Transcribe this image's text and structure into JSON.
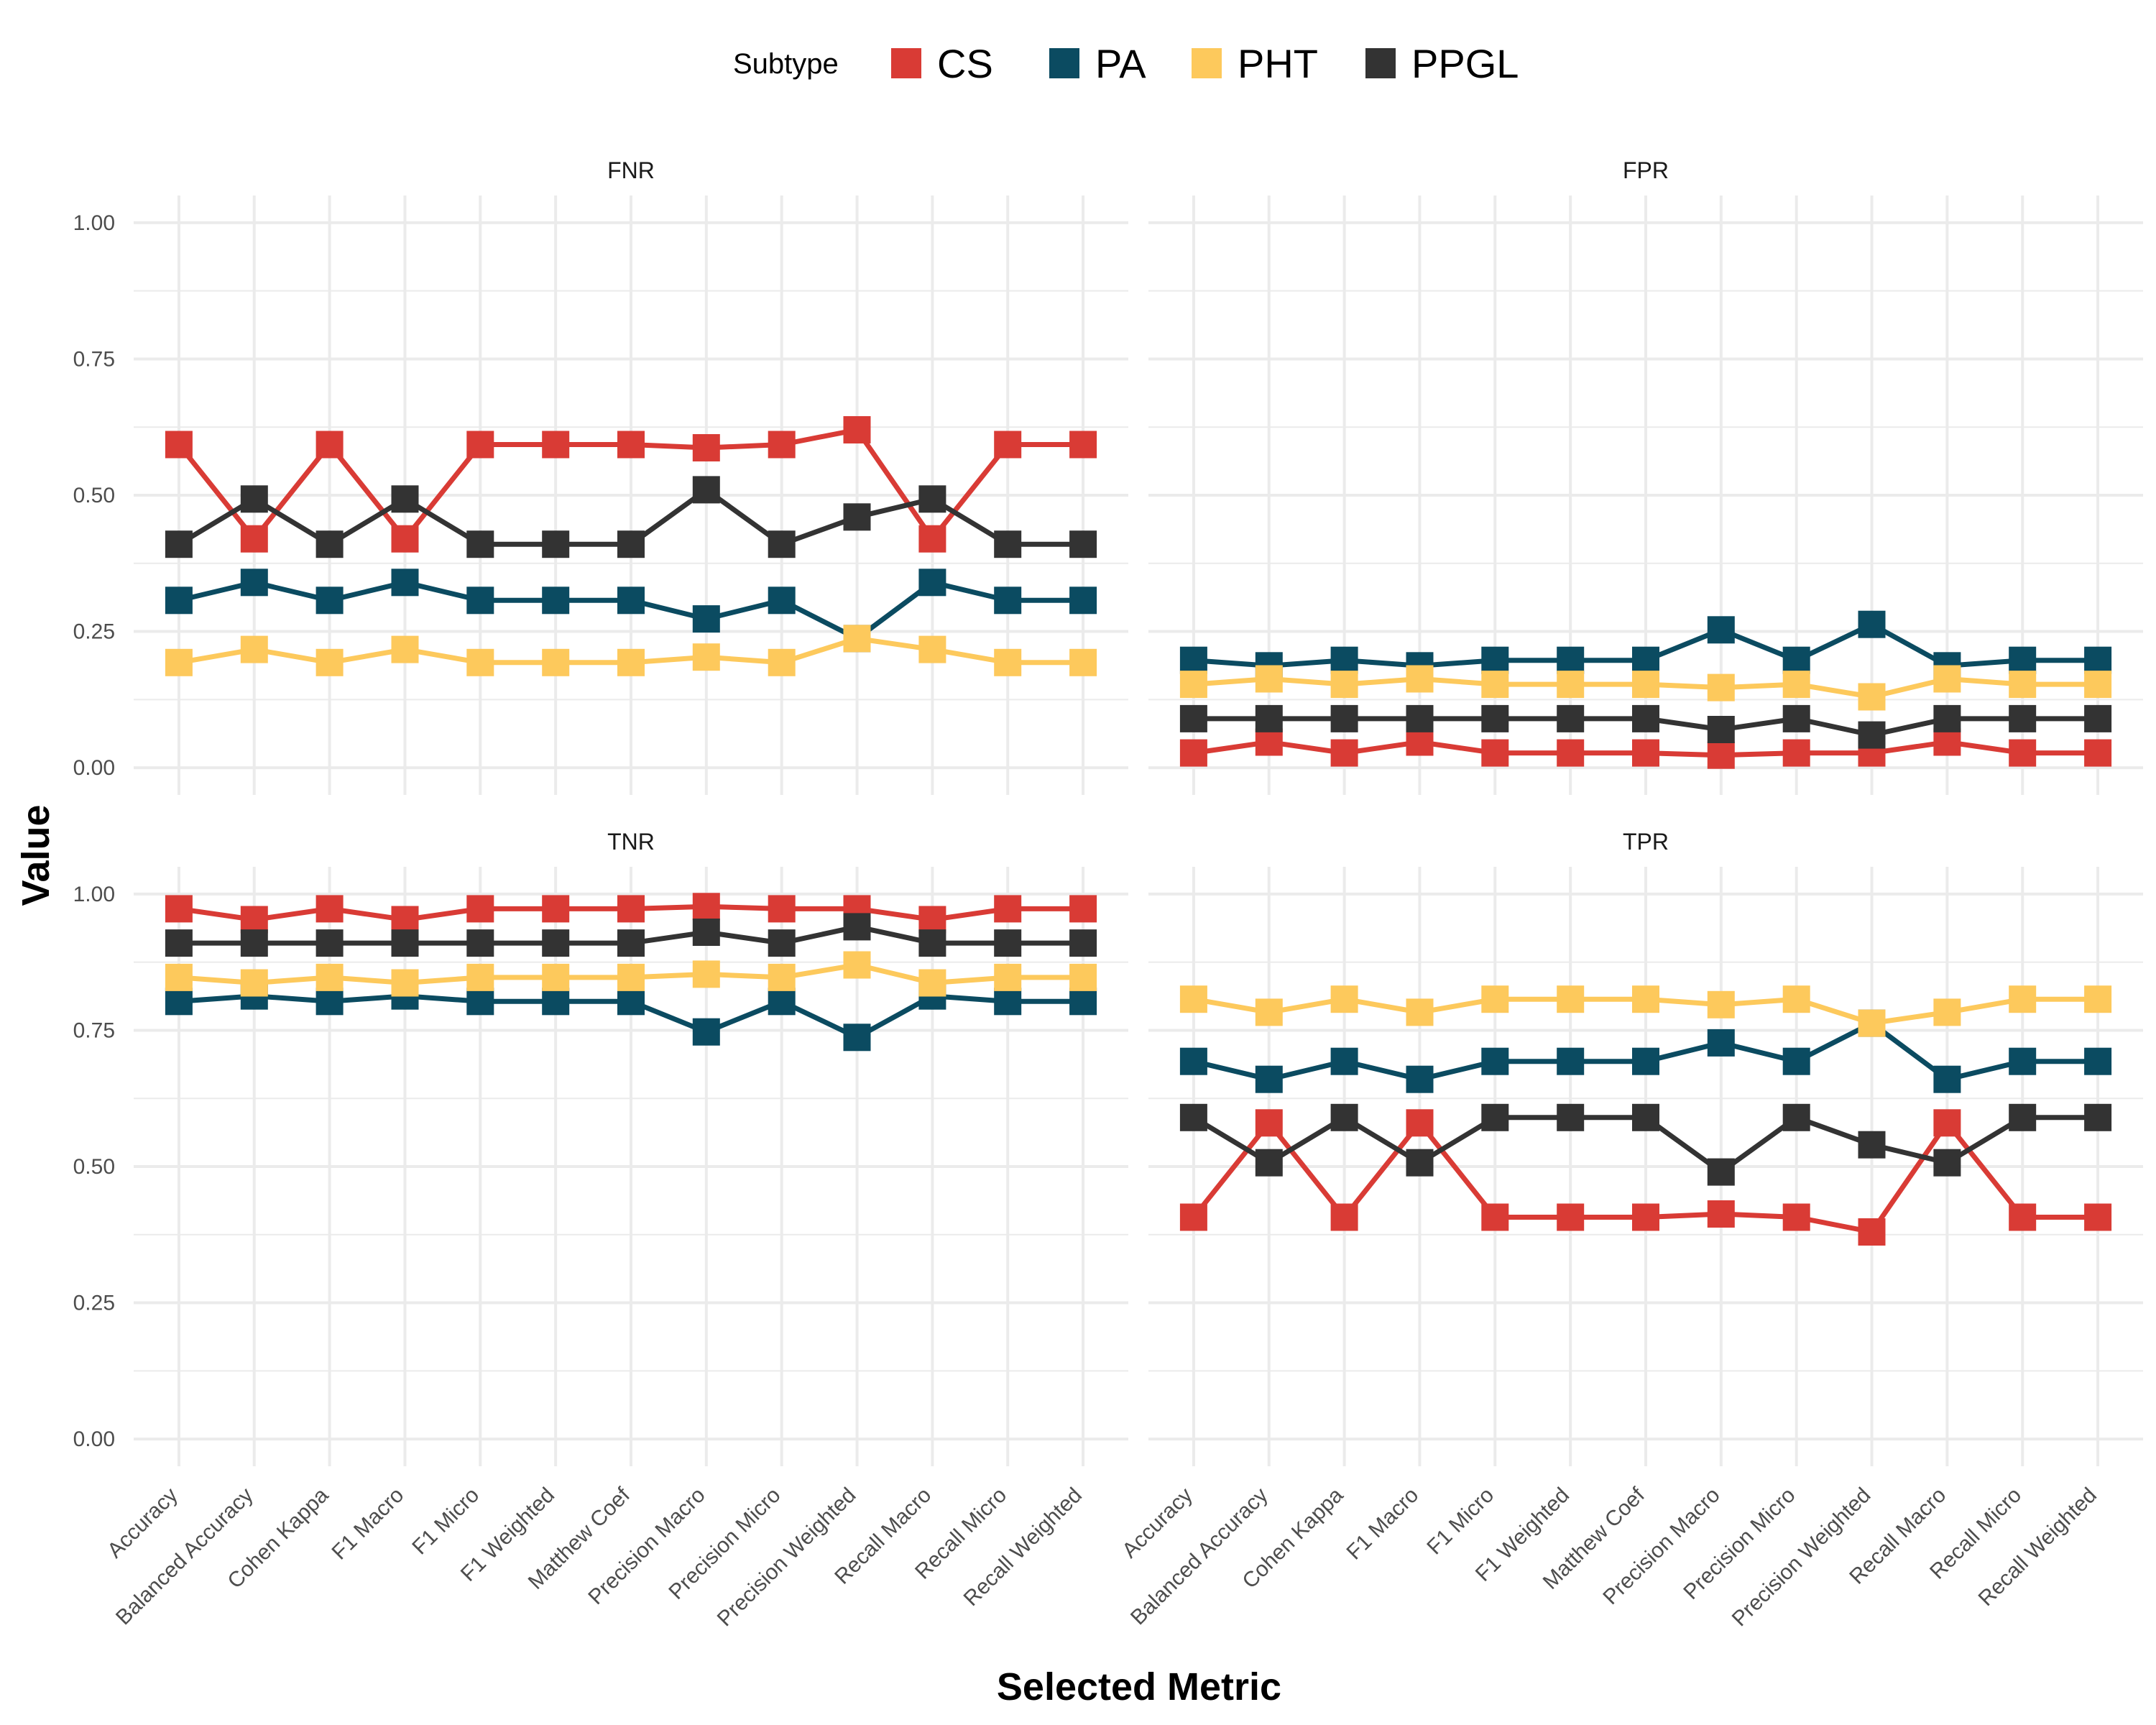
{
  "chart_data": {
    "type": "line",
    "xlabel": "Selected Metric",
    "ylabel": "Value",
    "ylim": [
      0,
      1
    ],
    "yticks": [
      "0.00",
      "0.25",
      "0.50",
      "0.75",
      "1.00"
    ],
    "categories": [
      "Accuracy",
      "Balanced Accuracy",
      "Cohen Kappa",
      "F1 Macro",
      "F1 Micro",
      "F1 Weighted",
      "Matthew Coef",
      "Precision Macro",
      "Precision Micro",
      "Precision Weighted",
      "Recall Macro",
      "Recall Micro",
      "Recall Weighted"
    ],
    "legend": {
      "title": "Subtype",
      "position": "top",
      "entries": [
        {
          "name": "CS",
          "color": "#d93b35"
        },
        {
          "name": "PA",
          "color": "#0b4b61"
        },
        {
          "name": "PHT",
          "color": "#fdc95c"
        },
        {
          "name": "PPGL",
          "color": "#333333"
        }
      ]
    },
    "panels": [
      {
        "title": "FNR",
        "series": [
          {
            "name": "CS",
            "values": [
              0.593,
              0.42,
              0.593,
              0.42,
              0.593,
              0.593,
              0.593,
              0.587,
              0.593,
              0.62,
              0.42,
              0.593,
              0.593
            ]
          },
          {
            "name": "PA",
            "values": [
              0.307,
              0.34,
              0.307,
              0.34,
              0.307,
              0.307,
              0.307,
              0.273,
              0.307,
              0.237,
              0.34,
              0.307,
              0.307
            ]
          },
          {
            "name": "PHT",
            "values": [
              0.193,
              0.217,
              0.193,
              0.217,
              0.193,
              0.193,
              0.193,
              0.203,
              0.193,
              0.237,
              0.217,
              0.193,
              0.193
            ]
          },
          {
            "name": "PPGL",
            "values": [
              0.41,
              0.493,
              0.41,
              0.493,
              0.41,
              0.41,
              0.41,
              0.51,
              0.41,
              0.46,
              0.493,
              0.41,
              0.41
            ]
          }
        ]
      },
      {
        "title": "FPR",
        "series": [
          {
            "name": "CS",
            "values": [
              0.027,
              0.047,
              0.027,
              0.047,
              0.027,
              0.027,
              0.027,
              0.023,
              0.027,
              0.027,
              0.047,
              0.027,
              0.027
            ]
          },
          {
            "name": "PA",
            "values": [
              0.197,
              0.187,
              0.197,
              0.187,
              0.197,
              0.197,
              0.197,
              0.253,
              0.197,
              0.263,
              0.187,
              0.197,
              0.197
            ]
          },
          {
            "name": "PHT",
            "values": [
              0.153,
              0.163,
              0.153,
              0.163,
              0.153,
              0.153,
              0.153,
              0.147,
              0.153,
              0.13,
              0.163,
              0.153,
              0.153
            ]
          },
          {
            "name": "PPGL",
            "values": [
              0.09,
              0.09,
              0.09,
              0.09,
              0.09,
              0.09,
              0.09,
              0.07,
              0.09,
              0.06,
              0.09,
              0.09,
              0.09
            ]
          }
        ]
      },
      {
        "title": "TNR",
        "series": [
          {
            "name": "CS",
            "values": [
              0.973,
              0.953,
              0.973,
              0.953,
              0.973,
              0.973,
              0.973,
              0.977,
              0.973,
              0.973,
              0.953,
              0.973,
              0.973
            ]
          },
          {
            "name": "PA",
            "values": [
              0.803,
              0.813,
              0.803,
              0.813,
              0.803,
              0.803,
              0.803,
              0.747,
              0.803,
              0.737,
              0.813,
              0.803,
              0.803
            ]
          },
          {
            "name": "PHT",
            "values": [
              0.847,
              0.837,
              0.847,
              0.837,
              0.847,
              0.847,
              0.847,
              0.853,
              0.847,
              0.87,
              0.837,
              0.847,
              0.847
            ]
          },
          {
            "name": "PPGL",
            "values": [
              0.91,
              0.91,
              0.91,
              0.91,
              0.91,
              0.91,
              0.91,
              0.93,
              0.91,
              0.94,
              0.91,
              0.91,
              0.91
            ]
          }
        ]
      },
      {
        "title": "TPR",
        "series": [
          {
            "name": "CS",
            "values": [
              0.407,
              0.58,
              0.407,
              0.58,
              0.407,
              0.407,
              0.407,
              0.413,
              0.407,
              0.38,
              0.58,
              0.407,
              0.407
            ]
          },
          {
            "name": "PA",
            "values": [
              0.693,
              0.66,
              0.693,
              0.66,
              0.693,
              0.693,
              0.693,
              0.727,
              0.693,
              0.763,
              0.66,
              0.693,
              0.693
            ]
          },
          {
            "name": "PHT",
            "values": [
              0.807,
              0.783,
              0.807,
              0.783,
              0.807,
              0.807,
              0.807,
              0.797,
              0.807,
              0.763,
              0.783,
              0.807,
              0.807
            ]
          },
          {
            "name": "PPGL",
            "values": [
              0.59,
              0.507,
              0.59,
              0.507,
              0.59,
              0.59,
              0.59,
              0.49,
              0.59,
              0.54,
              0.507,
              0.59,
              0.59
            ]
          }
        ]
      }
    ]
  }
}
